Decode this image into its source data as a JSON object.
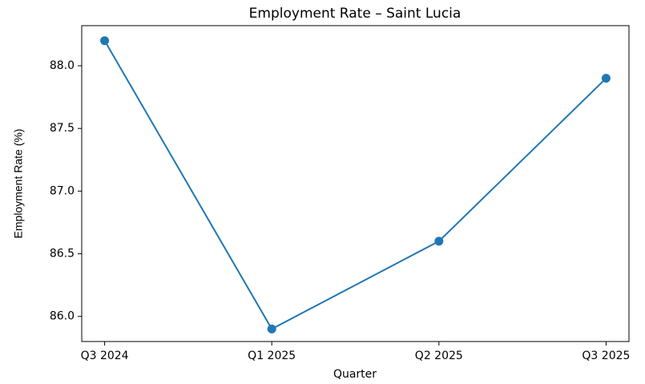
{
  "chart_data": {
    "type": "line",
    "title": "Employment Rate – Saint Lucia",
    "x_label": "Quarter",
    "y_label": "Employment Rate (%)",
    "categories": [
      "Q3 2024",
      "Q1 2025",
      "Q2 2025",
      "Q3 2025"
    ],
    "series": [
      {
        "name": "Employment Rate",
        "color": "#1f77b4",
        "values": [
          88.2,
          85.9,
          86.6,
          87.9
        ]
      }
    ],
    "ylim": [
      85.8,
      88.32
    ],
    "yticks": [
      {
        "value": 86,
        "label": "86.0"
      },
      86.5,
      {
        "value": 87,
        "label": "87.0"
      },
      87.5,
      {
        "value": 88,
        "label": "88.0"
      }
    ],
    "grid": false
  }
}
